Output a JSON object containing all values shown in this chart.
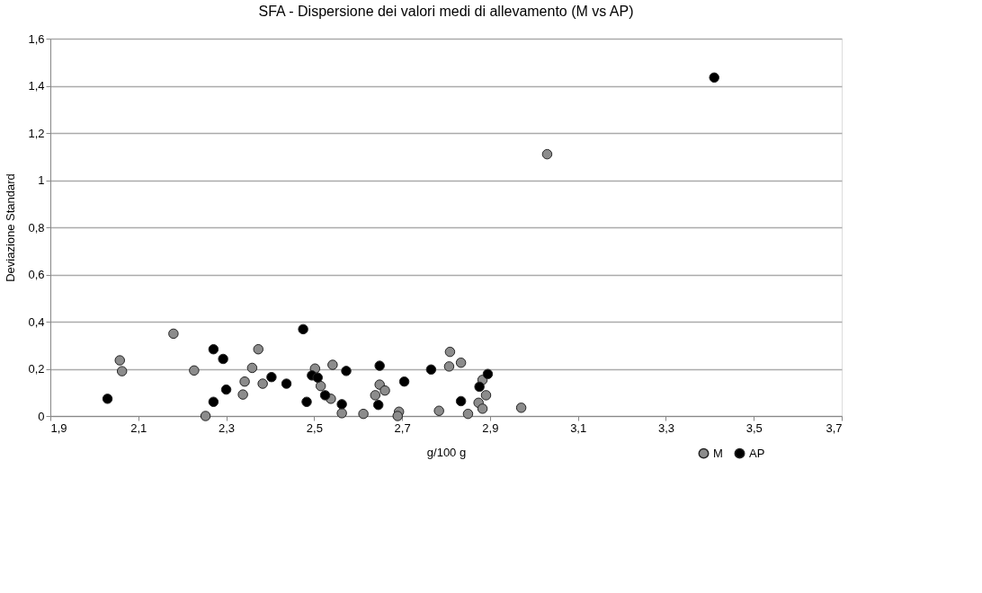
{
  "chart_data": {
    "type": "scatter",
    "title": "SFA - Dispersione dei valori medi di allevamento (M vs AP)",
    "xlabel": "g/100 g",
    "ylabel": "Deviazione Standard",
    "xlim": [
      1.9,
      3.7
    ],
    "xticks": [
      {
        "value": 1.9,
        "label": "1,9"
      },
      {
        "value": 2.1,
        "label": "2,1"
      },
      {
        "value": 2.3,
        "label": "2,3"
      },
      {
        "value": 2.5,
        "label": "2,5"
      },
      {
        "value": 2.7,
        "label": "2,7"
      },
      {
        "value": 2.9,
        "label": "2,9"
      },
      {
        "value": 3.1,
        "label": "3,1"
      },
      {
        "value": 3.3,
        "label": "3,3"
      },
      {
        "value": 3.5,
        "label": "3,5"
      },
      {
        "value": 3.7,
        "label": "3,7"
      }
    ],
    "ylim": [
      0,
      1.6
    ],
    "yticks": [
      0,
      {
        "value": 0.2,
        "label": "0,2"
      },
      {
        "value": 0.4,
        "label": "0,4"
      },
      {
        "value": 0.6,
        "label": "0,6"
      },
      {
        "value": 0.8,
        "label": "0,8"
      },
      1,
      {
        "value": 1.2,
        "label": "1,2"
      },
      {
        "value": 1.4,
        "label": "1,4"
      },
      {
        "value": 1.6,
        "label": "1,6"
      }
    ],
    "grid": "y",
    "legend": "bottom right",
    "marker": "circle",
    "series": [
      {
        "name": "M",
        "color": "#8c8c8c",
        "x": [
          2.058,
          2.063,
          2.18,
          2.227,
          2.253,
          2.338,
          2.342,
          2.359,
          2.373,
          2.383,
          2.502,
          2.515,
          2.538,
          2.542,
          2.563,
          2.612,
          2.649,
          2.661,
          2.639,
          2.693,
          2.69,
          2.784,
          2.809,
          2.807,
          2.834,
          2.85,
          2.883,
          2.891,
          2.874,
          2.883,
          2.971,
          3.03
        ],
        "values": [
          0.236,
          0.19,
          0.349,
          0.193,
          0.0,
          0.091,
          0.146,
          0.204,
          0.283,
          0.137,
          0.201,
          0.127,
          0.073,
          0.217,
          0.012,
          0.009,
          0.133,
          0.108,
          0.088,
          0.018,
          0.0,
          0.022,
          0.272,
          0.21,
          0.226,
          0.009,
          0.153,
          0.088,
          0.056,
          0.031,
          0.035,
          1.11
        ]
      },
      {
        "name": "AP",
        "color": "#000000",
        "x": [
          2.03,
          2.271,
          2.271,
          2.293,
          2.3,
          2.403,
          2.437,
          2.475,
          2.483,
          2.495,
          2.508,
          2.525,
          2.573,
          2.563,
          2.649,
          2.646,
          2.705,
          2.766,
          2.834,
          2.895,
          2.876,
          3.41
        ],
        "values": [
          0.073,
          0.283,
          0.06,
          0.242,
          0.112,
          0.165,
          0.137,
          0.368,
          0.06,
          0.172,
          0.163,
          0.088,
          0.191,
          0.05,
          0.213,
          0.047,
          0.146,
          0.197,
          0.063,
          0.178,
          0.124,
          1.435
        ]
      }
    ]
  }
}
